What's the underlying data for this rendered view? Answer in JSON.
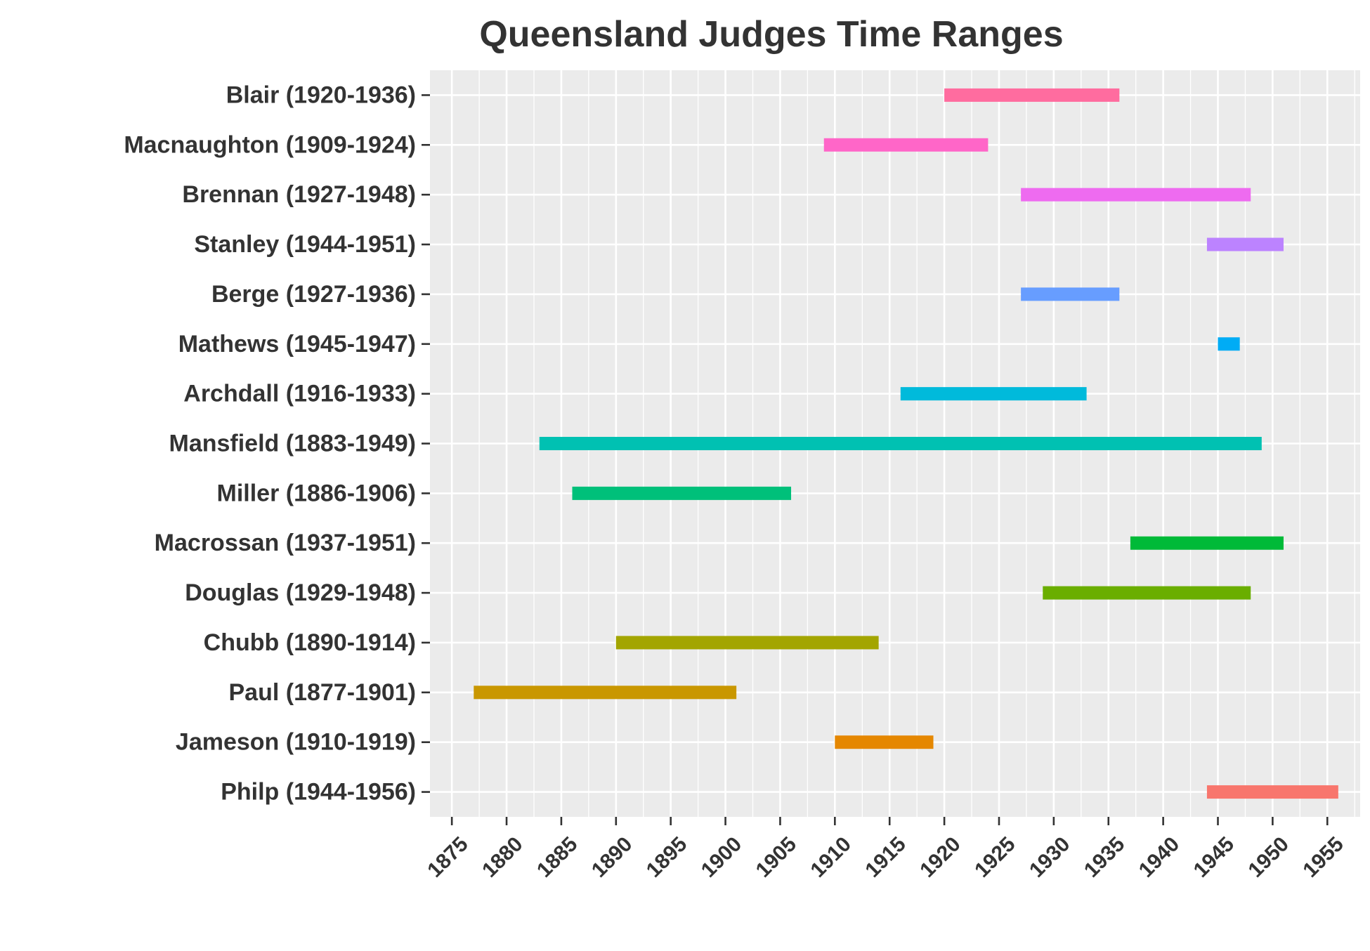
{
  "chart_data": {
    "type": "bar",
    "title": "Queensland Judges Time Ranges",
    "xlabel": "",
    "ylabel": "",
    "xlim": [
      1873,
      1958
    ],
    "xticks": [
      1875,
      1880,
      1885,
      1890,
      1895,
      1900,
      1905,
      1910,
      1915,
      1920,
      1925,
      1930,
      1935,
      1940,
      1945,
      1950,
      1955
    ],
    "grid": true,
    "legend": "none",
    "series": [
      {
        "label": "Blair (1920-1936)",
        "start": 1920,
        "end": 1936,
        "color": "#FF6C9F"
      },
      {
        "label": "Macnaughton (1909-1924)",
        "start": 1909,
        "end": 1924,
        "color": "#FF66C8"
      },
      {
        "label": "Brennan (1927-1948)",
        "start": 1927,
        "end": 1948,
        "color": "#EE6BF0"
      },
      {
        "label": "Stanley (1944-1951)",
        "start": 1944,
        "end": 1951,
        "color": "#BC83FF"
      },
      {
        "label": "Berge (1927-1936)",
        "start": 1927,
        "end": 1936,
        "color": "#679DFF"
      },
      {
        "label": "Mathews (1945-1947)",
        "start": 1945,
        "end": 1947,
        "color": "#00ACF5"
      },
      {
        "label": "Archdall (1916-1933)",
        "start": 1916,
        "end": 1933,
        "color": "#00BADB"
      },
      {
        "label": "Mansfield (1883-1949)",
        "start": 1883,
        "end": 1949,
        "color": "#00C1B2"
      },
      {
        "label": "Miller (1886-1906)",
        "start": 1886,
        "end": 1906,
        "color": "#00C07A"
      },
      {
        "label": "Macrossan (1937-1951)",
        "start": 1937,
        "end": 1951,
        "color": "#00BA38"
      },
      {
        "label": "Douglas (1929-1948)",
        "start": 1929,
        "end": 1948,
        "color": "#6AAE00"
      },
      {
        "label": "Chubb (1890-1914)",
        "start": 1890,
        "end": 1914,
        "color": "#A3A500"
      },
      {
        "label": "Paul (1877-1901)",
        "start": 1877,
        "end": 1901,
        "color": "#C99700"
      },
      {
        "label": "Jameson (1910-1919)",
        "start": 1910,
        "end": 1919,
        "color": "#E58700"
      },
      {
        "label": "Philp (1944-1956)",
        "start": 1944,
        "end": 1956,
        "color": "#F8766D"
      }
    ]
  }
}
